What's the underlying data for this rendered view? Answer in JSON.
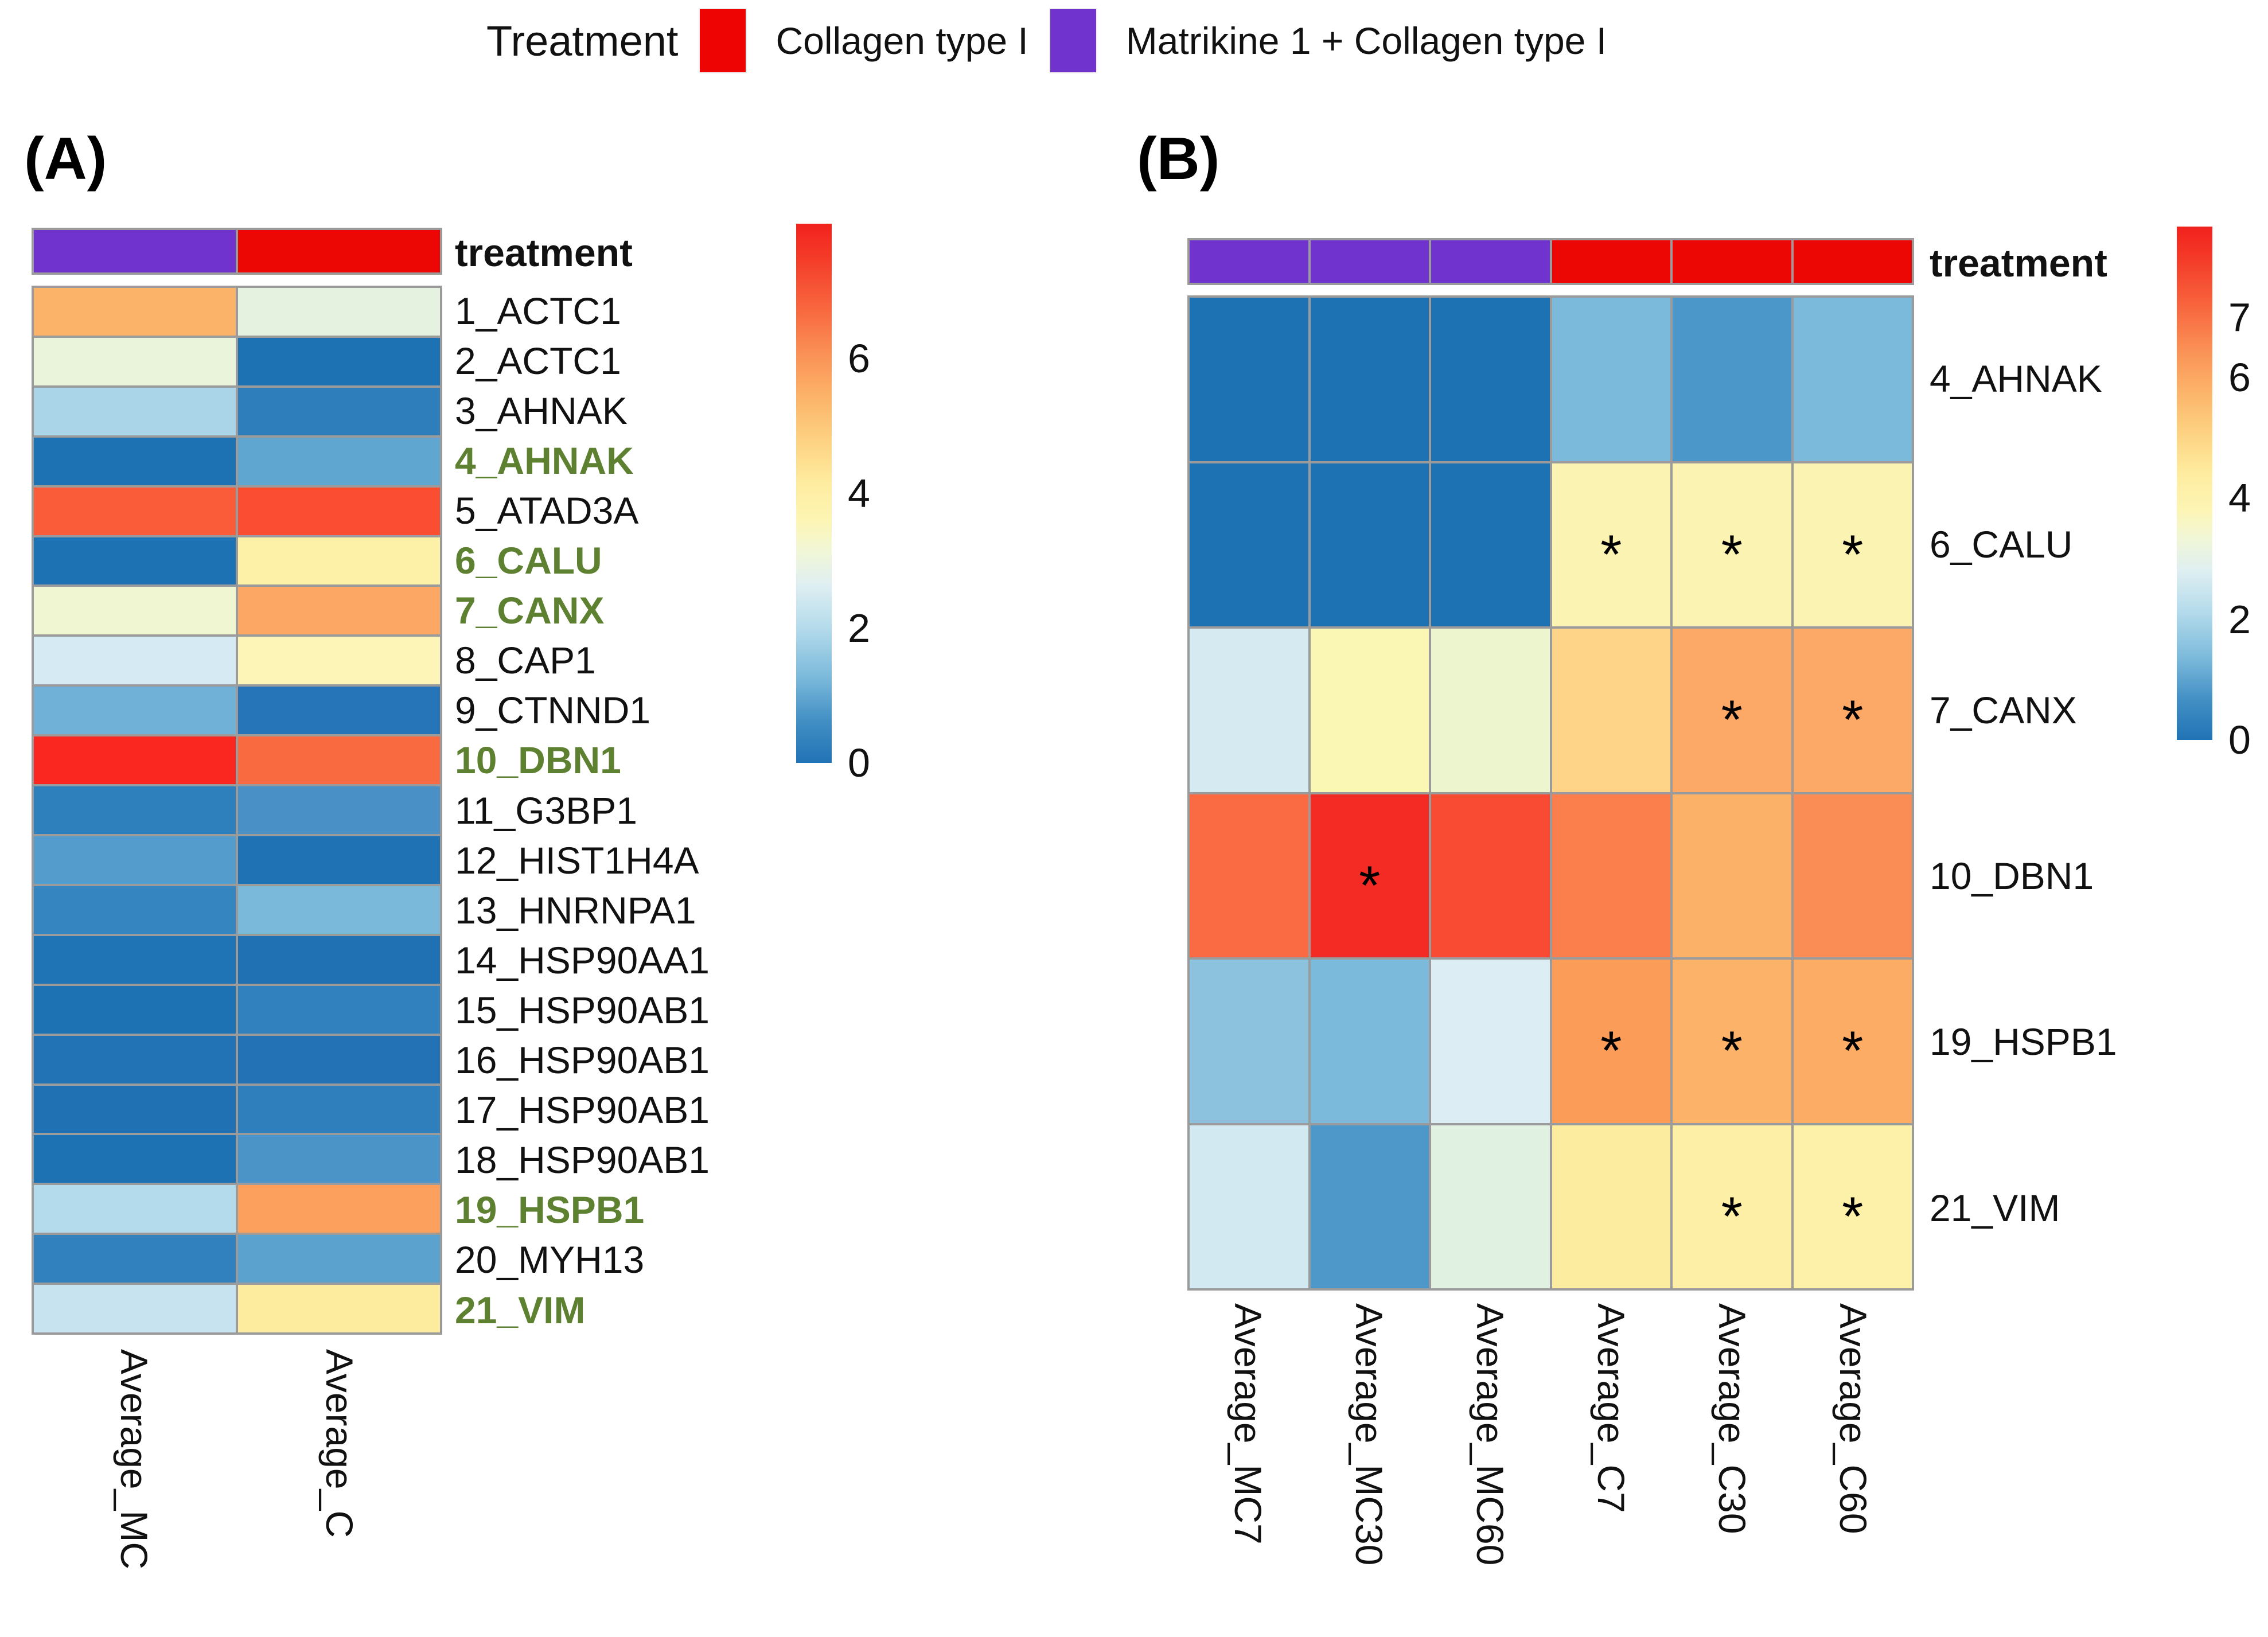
{
  "legend": {
    "title": "Treatment",
    "items": [
      {
        "label": "Collagen type I",
        "color": "#EE0503"
      },
      {
        "label": "Matrikine 1 + Collagen type I",
        "color": "#7133CE"
      }
    ]
  },
  "style_colors": {
    "grid_line": "#9B9B9B",
    "highlight_text": "#5D8031",
    "normal_text": "#111111",
    "annotation_purple": "#7133CE",
    "annotation_red": "#EC0604"
  },
  "chart_data": [
    {
      "type": "heatmap",
      "panel_label": "(A)",
      "annotation_label": "treatment",
      "columns": [
        "Average_MC",
        "Average_C"
      ],
      "column_treatments": [
        "Matrikine 1 + Collagen type I",
        "Collagen type I"
      ],
      "column_annotation_colors": [
        "#7133CE",
        "#EC0604"
      ],
      "rows": [
        "1_ACTC1",
        "2_ACTC1",
        "3_AHNAK",
        "4_AHNAK",
        "5_ATAD3A",
        "6_CALU",
        "7_CANX",
        "8_CAP1",
        "9_CTNND1",
        "10_DBN1",
        "11_G3BP1",
        "12_HIST1H4A",
        "13_HNRNPA1",
        "14_HSP90AA1",
        "15_HSP90AB1",
        "16_HSP90AB1",
        "17_HSP90AB1",
        "18_HSP90AB1",
        "19_HSPB1",
        "20_MYH13",
        "21_VIM"
      ],
      "highlighted_rows": [
        "4_AHNAK",
        "6_CALU",
        "7_CANX",
        "10_DBN1",
        "19_HSPB1",
        "21_VIM"
      ],
      "values": [
        [
          5.6,
          3.2
        ],
        [
          3.3,
          0.3
        ],
        [
          2.0,
          0.7
        ],
        [
          0.3,
          1.4
        ],
        [
          7.0,
          7.1
        ],
        [
          0.3,
          4.3
        ],
        [
          3.6,
          5.9
        ],
        [
          2.5,
          4.1
        ],
        [
          1.6,
          0.5
        ],
        [
          7.5,
          6.9
        ],
        [
          0.8,
          1.1
        ],
        [
          1.3,
          0.4
        ],
        [
          0.9,
          1.7
        ],
        [
          0.4,
          0.4
        ],
        [
          0.3,
          0.8
        ],
        [
          0.4,
          0.4
        ],
        [
          0.4,
          0.7
        ],
        [
          0.3,
          1.1
        ],
        [
          2.1,
          6.0
        ],
        [
          0.8,
          1.4
        ],
        [
          2.3,
          4.5
        ]
      ],
      "cell_colors": [
        [
          "#FBB36A",
          "#E4F2DF"
        ],
        [
          "#E9F4DB",
          "#1D72B4"
        ],
        [
          "#AAD5E8",
          "#2E7EBC"
        ],
        [
          "#1D72B4",
          "#5FA6D1"
        ],
        [
          "#FA5B39",
          "#FA4D31"
        ],
        [
          "#1D72B4",
          "#FDF0A7"
        ],
        [
          "#EFF6D1",
          "#FCA763"
        ],
        [
          "#D5EAF2",
          "#FDF5B8"
        ],
        [
          "#6FB1D7",
          "#2575B8"
        ],
        [
          "#F9271F",
          "#FA6A41"
        ],
        [
          "#2E80BD",
          "#4890C5"
        ],
        [
          "#539CCC",
          "#1F73B5"
        ],
        [
          "#3585C1",
          "#7BB9DB"
        ],
        [
          "#1F74B6",
          "#2070B4"
        ],
        [
          "#1D72B4",
          "#3181BE"
        ],
        [
          "#2173B5",
          "#2272B5"
        ],
        [
          "#2070B4",
          "#2F7FBD"
        ],
        [
          "#1D72B4",
          "#4A94C7"
        ],
        [
          "#B4DBEB",
          "#FCA15D"
        ],
        [
          "#3181BE",
          "#5BA2CE"
        ],
        [
          "#C6E3EF",
          "#FDEB9E"
        ]
      ],
      "significance": [
        [
          false,
          false
        ],
        [
          false,
          false
        ],
        [
          false,
          false
        ],
        [
          false,
          false
        ],
        [
          false,
          false
        ],
        [
          false,
          false
        ],
        [
          false,
          false
        ],
        [
          false,
          false
        ],
        [
          false,
          false
        ],
        [
          false,
          false
        ],
        [
          false,
          false
        ],
        [
          false,
          false
        ],
        [
          false,
          false
        ],
        [
          false,
          false
        ],
        [
          false,
          false
        ],
        [
          false,
          false
        ],
        [
          false,
          false
        ],
        [
          false,
          false
        ],
        [
          false,
          false
        ],
        [
          false,
          false
        ],
        [
          false,
          false
        ]
      ],
      "colorbar": {
        "min": 0,
        "max": 8,
        "ticks": [
          {
            "label": "6",
            "pos_pct": 25
          },
          {
            "label": "4",
            "pos_pct": 50
          },
          {
            "label": "2",
            "pos_pct": 75
          },
          {
            "label": "0",
            "pos_pct": 100
          }
        ],
        "gradient": [
          {
            "pct": 0,
            "color": "#F2211C"
          },
          {
            "pct": 7,
            "color": "#F43E2A"
          },
          {
            "pct": 15,
            "color": "#F8633D"
          },
          {
            "pct": 24,
            "color": "#FA9055"
          },
          {
            "pct": 32,
            "color": "#FCB369"
          },
          {
            "pct": 40,
            "color": "#FDD181"
          },
          {
            "pct": 48,
            "color": "#FEEC9F"
          },
          {
            "pct": 55,
            "color": "#FDF5B4"
          },
          {
            "pct": 61,
            "color": "#F0F6D8"
          },
          {
            "pct": 67,
            "color": "#DFEFF2"
          },
          {
            "pct": 75,
            "color": "#B4DBEB"
          },
          {
            "pct": 84,
            "color": "#7CBADB"
          },
          {
            "pct": 92,
            "color": "#4390C5"
          },
          {
            "pct": 100,
            "color": "#2173B5"
          }
        ]
      }
    },
    {
      "type": "heatmap",
      "panel_label": "(B)",
      "annotation_label": "treatment",
      "columns": [
        "Average_MC7",
        "Average_MC30",
        "Average_MC60",
        "Average_C7",
        "Average_C30",
        "Average_C60"
      ],
      "column_treatments": [
        "Matrikine 1 + Collagen type I",
        "Matrikine 1 + Collagen type I",
        "Matrikine 1 + Collagen type I",
        "Collagen type I",
        "Collagen type I",
        "Collagen type I"
      ],
      "column_annotation_colors": [
        "#7133CE",
        "#7133CE",
        "#7133CE",
        "#EC0604",
        "#EC0604",
        "#EC0604"
      ],
      "rows": [
        "4_AHNAK",
        "6_CALU",
        "7_CANX",
        "10_DBN1",
        "19_HSPB1",
        "21_VIM"
      ],
      "highlighted_rows": [],
      "values": [
        [
          0.3,
          0.3,
          0.3,
          1.7,
          1.2,
          1.7
        ],
        [
          0.3,
          0.3,
          0.3,
          4.1,
          4.1,
          4.1
        ],
        [
          2.5,
          4.0,
          3.6,
          5.3,
          5.9,
          5.9
        ],
        [
          6.9,
          7.6,
          7.2,
          6.6,
          5.7,
          6.4
        ],
        [
          1.9,
          1.7,
          2.4,
          6.0,
          5.6,
          5.8
        ],
        [
          2.4,
          1.2,
          3.0,
          4.4,
          4.3,
          4.3
        ]
      ],
      "cell_colors": [
        [
          "#1D72B4",
          "#1D72B4",
          "#1D72B4",
          "#7CBADB",
          "#4C97C9",
          "#7CBADB"
        ],
        [
          "#1D72B4",
          "#1D72B4",
          "#1D72B4",
          "#FBF3B2",
          "#FBF3B2",
          "#FBF3B2"
        ],
        [
          "#D6EAF2",
          "#FAF6B4",
          "#EDF5CF",
          "#FDD488",
          "#FCA967",
          "#FCA967"
        ],
        [
          "#FA6B44",
          "#F42A24",
          "#F94A33",
          "#FA7F4D",
          "#FCB168",
          "#FA8C55"
        ],
        [
          "#8CC2DD",
          "#7CBADB",
          "#DCEEF3",
          "#FB9C58",
          "#FCB269",
          "#FCAC64"
        ],
        [
          "#D2E9F1",
          "#4E98C9",
          "#E0F1E2",
          "#FBEC9F",
          "#FDEFA6",
          "#FDF0A8"
        ]
      ],
      "significance": [
        [
          false,
          false,
          false,
          false,
          false,
          false
        ],
        [
          false,
          false,
          false,
          true,
          true,
          true
        ],
        [
          false,
          false,
          false,
          false,
          true,
          true
        ],
        [
          false,
          true,
          false,
          false,
          false,
          false
        ],
        [
          false,
          false,
          false,
          true,
          true,
          true
        ],
        [
          false,
          false,
          false,
          false,
          true,
          true
        ]
      ],
      "significance_marker": "*",
      "colorbar": {
        "min": 0,
        "max": 8.5,
        "ticks": [
          {
            "label": "7",
            "pos_pct": 17.6
          },
          {
            "label": "6",
            "pos_pct": 29.4
          },
          {
            "label": "4",
            "pos_pct": 52.9
          },
          {
            "label": "2",
            "pos_pct": 76.5
          },
          {
            "label": "0",
            "pos_pct": 100
          }
        ],
        "gradient": [
          {
            "pct": 0,
            "color": "#F2211C"
          },
          {
            "pct": 7,
            "color": "#F43E2A"
          },
          {
            "pct": 15,
            "color": "#F8633D"
          },
          {
            "pct": 24,
            "color": "#FA9055"
          },
          {
            "pct": 32,
            "color": "#FCB369"
          },
          {
            "pct": 40,
            "color": "#FDD181"
          },
          {
            "pct": 48,
            "color": "#FEEC9F"
          },
          {
            "pct": 55,
            "color": "#FDF5B4"
          },
          {
            "pct": 61,
            "color": "#F0F6D8"
          },
          {
            "pct": 67,
            "color": "#DFEFF2"
          },
          {
            "pct": 75,
            "color": "#B4DBEB"
          },
          {
            "pct": 84,
            "color": "#7CBADB"
          },
          {
            "pct": 92,
            "color": "#4390C5"
          },
          {
            "pct": 100,
            "color": "#2173B5"
          }
        ]
      }
    }
  ]
}
